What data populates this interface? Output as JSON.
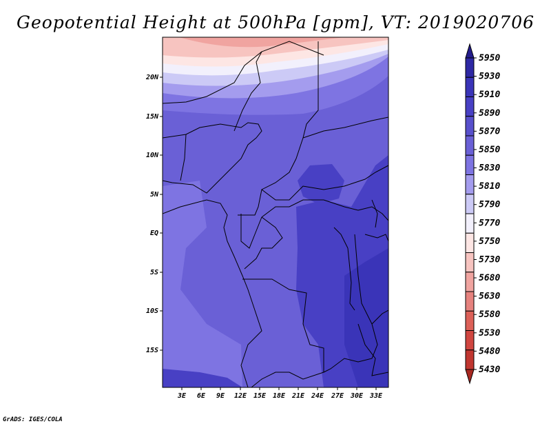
{
  "title": "Geopotential Height at 500hPa [gpm], VT: 2019020706",
  "credit": "GrADS: IGES/COLA",
  "map": {
    "lat_labels": [
      "20N",
      "15N",
      "10N",
      "5N",
      "EQ",
      "5S",
      "10S",
      "15S"
    ],
    "lon_labels": [
      "3E",
      "6E",
      "9E",
      "12E",
      "15E",
      "18E",
      "21E",
      "24E",
      "27E",
      "30E",
      "33E"
    ]
  },
  "colorbar": {
    "levels": [
      "5950",
      "5930",
      "5910",
      "5890",
      "5870",
      "5850",
      "5830",
      "5810",
      "5790",
      "5770",
      "5750",
      "5730",
      "5680",
      "5630",
      "5580",
      "5530",
      "5480",
      "5430"
    ],
    "colors": [
      "#241c8c",
      "#2e28a4",
      "#3a34b8",
      "#4840c4",
      "#5850cc",
      "#6a60d6",
      "#7e74e2",
      "#a49cee",
      "#cccaf6",
      "#f2f0fc",
      "#fde6e4",
      "#f7c4c0",
      "#f0a4a0",
      "#e6827e",
      "#dc6058",
      "#d04640",
      "#c03630",
      "#a82820"
    ]
  }
}
